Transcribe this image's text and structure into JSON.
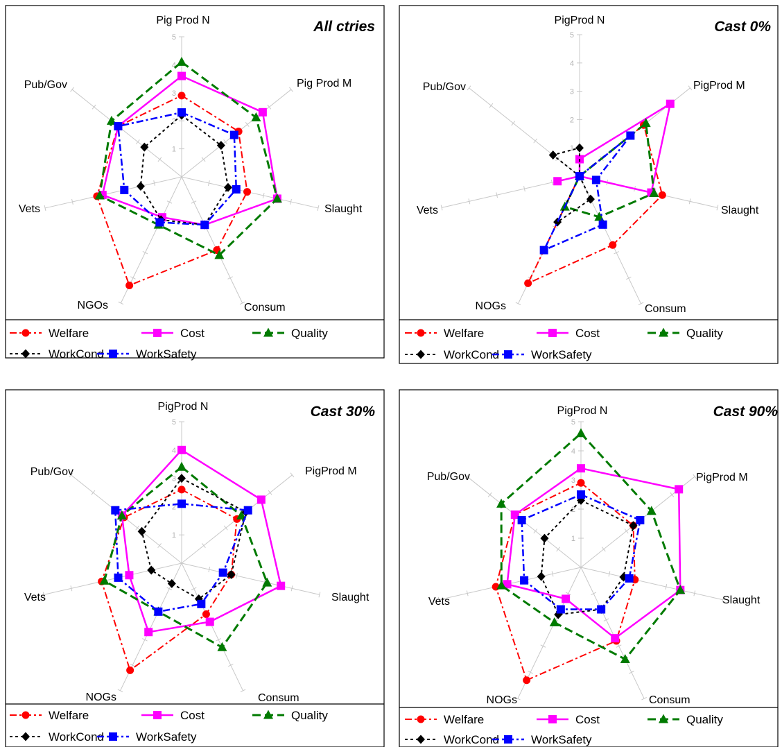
{
  "legend": {
    "items": [
      {
        "name": "Welfare",
        "color": "#ff0000",
        "marker": "circle",
        "dash": "10,4,3,4",
        "width": 2
      },
      {
        "name": "Cost",
        "color": "#ff00ff",
        "marker": "square",
        "dash": "",
        "width": 2.5
      },
      {
        "name": "Quality",
        "color": "#007a00",
        "marker": "triangle",
        "dash": "12,6",
        "width": 3
      },
      {
        "name": "WorkCond",
        "color": "#000000",
        "marker": "diamond",
        "dash": "4,4",
        "width": 2
      },
      {
        "name": "WorkSafety",
        "color": "#0000ff",
        "marker": "square",
        "dash": "10,4,3,4",
        "width": 2.5
      }
    ]
  },
  "chart_data": [
    {
      "type": "radar",
      "title": "All ctries",
      "axes": [
        "Pig Prod N",
        "Pig Prod M",
        "Slaught",
        "Consum",
        "NGOs",
        "Vets",
        "Pub/Gov"
      ],
      "scale_labels": [
        "1",
        "2",
        "3",
        "4",
        "5"
      ],
      "rmax": 5,
      "series": [
        {
          "name": "Welfare",
          "values": [
            2.9,
            2.6,
            2.4,
            2.9,
            4.3,
            3.1,
            2.9
          ]
        },
        {
          "name": "Cost",
          "values": [
            3.6,
            3.7,
            3.5,
            1.9,
            1.6,
            2.9,
            2.9
          ]
        },
        {
          "name": "Quality",
          "values": [
            4.1,
            3.4,
            3.5,
            3.1,
            1.9,
            3.0,
            3.2
          ]
        },
        {
          "name": "WorkCond",
          "values": [
            2.2,
            1.8,
            1.7,
            1.9,
            1.7,
            1.5,
            1.7
          ]
        },
        {
          "name": "WorkSafety",
          "values": [
            2.3,
            2.4,
            2.0,
            1.9,
            1.8,
            2.1,
            2.9
          ]
        }
      ]
    },
    {
      "type": "radar",
      "title": "Cast 0%",
      "axes": [
        "PigProd N",
        "PigProd M",
        "Slaught",
        "Consum",
        "NOGs",
        "Vets",
        "Pub/Gov"
      ],
      "scale_labels": [
        "1",
        "2",
        "3",
        "4",
        "5"
      ],
      "rmax": 5,
      "series": [
        {
          "name": "Welfare",
          "values": [
            0.0,
            2.9,
            3.0,
            2.7,
            4.2,
            0.0,
            0.0
          ]
        },
        {
          "name": "Cost",
          "values": [
            0.6,
            4.1,
            2.6,
            0.0,
            0.0,
            0.8,
            0.0
          ]
        },
        {
          "name": "Quality",
          "values": [
            0.0,
            3.0,
            2.7,
            1.6,
            1.2,
            0.0,
            0.0
          ]
        },
        {
          "name": "WorkCond",
          "values": [
            1.0,
            0.0,
            0.0,
            0.9,
            1.8,
            0.0,
            1.2
          ]
        },
        {
          "name": "WorkSafety",
          "values": [
            0.0,
            2.3,
            0.6,
            1.9,
            2.9,
            0.0,
            0.0
          ]
        }
      ]
    },
    {
      "type": "radar",
      "title": "Cast 30%",
      "axes": [
        "PigProd N",
        "PigProd M",
        "Slaught",
        "Consum",
        "NOGs",
        "Vets",
        "Pub/Gov"
      ],
      "scale_labels": [
        "1",
        "2",
        "3",
        "4",
        "5"
      ],
      "rmax": 5,
      "series": [
        {
          "name": "Welfare",
          "values": [
            2.6,
            2.5,
            1.8,
            2.0,
            4.2,
            2.9,
            2.6
          ]
        },
        {
          "name": "Cost",
          "values": [
            4.0,
            3.6,
            3.6,
            2.3,
            2.7,
            1.9,
            2.7
          ]
        },
        {
          "name": "Quality",
          "values": [
            3.4,
            2.7,
            3.1,
            3.3,
            1.9,
            2.8,
            2.7
          ]
        },
        {
          "name": "WorkCond",
          "values": [
            3.0,
            2.9,
            1.8,
            1.4,
            0.8,
            1.1,
            1.8
          ]
        },
        {
          "name": "WorkSafety",
          "values": [
            2.1,
            3.0,
            1.5,
            1.6,
            1.9,
            2.3,
            3.0
          ]
        }
      ]
    },
    {
      "type": "radar",
      "title": "Cast 90%",
      "axes": [
        "PigProd N",
        "PigProd M",
        "Slaught",
        "Consum",
        "NOGs",
        "Vets",
        "Pub/Gov"
      ],
      "scale_labels": [
        "1",
        "2",
        "3",
        "4",
        "5"
      ],
      "rmax": 5,
      "series": [
        {
          "name": "Welfare",
          "values": [
            2.9,
            2.3,
            1.9,
            2.8,
            4.3,
            3.0,
            2.9
          ]
        },
        {
          "name": "Cost",
          "values": [
            3.4,
            4.3,
            3.5,
            2.7,
            1.2,
            2.6,
            2.9
          ]
        },
        {
          "name": "Quality",
          "values": [
            4.6,
            3.1,
            3.5,
            3.5,
            2.1,
            2.8,
            3.5
          ]
        },
        {
          "name": "WorkCond",
          "values": [
            2.3,
            2.3,
            1.5,
            1.6,
            1.8,
            1.4,
            1.6
          ]
        },
        {
          "name": "WorkSafety",
          "values": [
            2.5,
            2.6,
            1.7,
            1.6,
            1.6,
            2.0,
            2.6
          ]
        }
      ]
    }
  ]
}
